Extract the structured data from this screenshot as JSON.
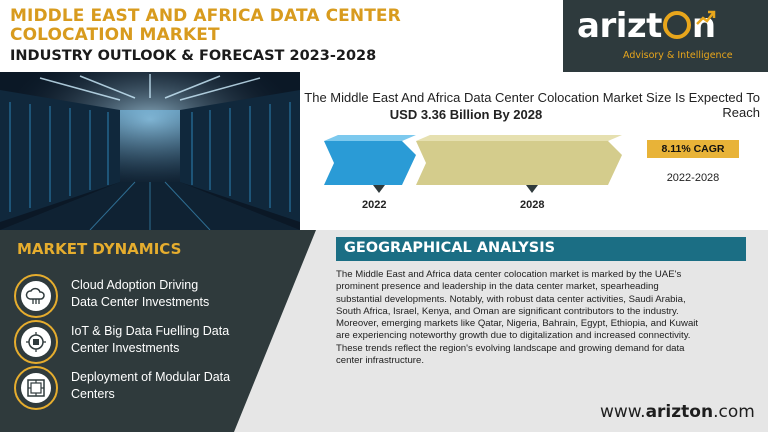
{
  "header": {
    "title_line1": "MIDDLE EAST AND AFRICA DATA CENTER",
    "title_line2": "COLOCATION MARKET",
    "subtitle": "INDUSTRY OUTLOOK & FORECAST 2023-2028"
  },
  "logo": {
    "name_part1": "arizt",
    "name_part2": "n",
    "tagline": "Advisory & Intelligence"
  },
  "forecast": {
    "headline": "The Middle East And Africa Data Center Colocation Market Size Is Expected To Reach",
    "value": "USD 3.36 Billion By 2028",
    "cagr": "8.11% CAGR",
    "period": "2022-2028",
    "start_year": "2022",
    "end_year": "2028"
  },
  "dynamics": {
    "title": "MARKET DYNAMICS",
    "items": [
      {
        "line1": "Cloud Adoption Driving",
        "line2": "Data Center Investments",
        "icon": "cloud-icon"
      },
      {
        "line1": "IoT & Big Data Fuelling Data",
        "line2": "Center Investments",
        "icon": "iot-icon"
      },
      {
        "line1": "Deployment of Modular Data",
        "line2": "Centers",
        "icon": "modular-icon"
      }
    ]
  },
  "geo": {
    "title": "GEOGRAPHICAL ANALYSIS",
    "lines": [
      "The Middle East and Africa  data center colocation  market is marked by the UAE's",
      "prominent presence and leadership in the data center market, spearheading",
      "substantial developments. Notably, with robust data center activities, Saudi Arabia,",
      "South Africa,  Israel,  Kenya, and Oman are significant contributors to the industry.",
      "Moreover, emerging markets like Qatar,  Nigeria, Bahrain, Egypt, Ethiopia, and Kuwait",
      "are experiencing noteworthy growth due to digitalization  and increased connectivity.",
      "These trends reflect the region's evolving landscape and growing demand for data",
      "center infrastructure."
    ]
  },
  "website": {
    "prefix": "www.",
    "brand": "arizton",
    "suffix": ".com"
  },
  "colors": {
    "accent_gold": "#e6ad2e",
    "teal": "#1b6e84",
    "dark_panel": "#2f3a3c",
    "bar_2022": "#2a9bd6",
    "bar_2028": "#d4cc8c"
  }
}
